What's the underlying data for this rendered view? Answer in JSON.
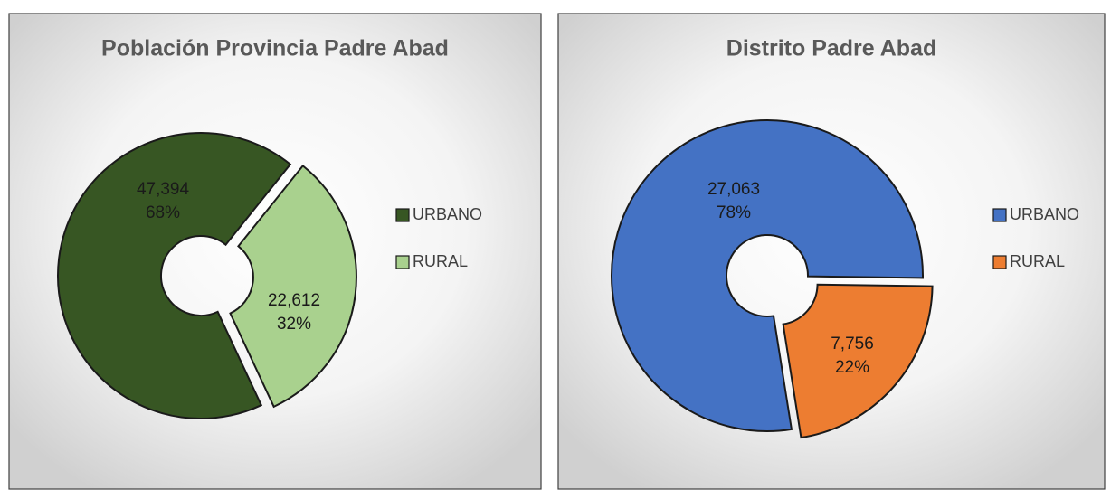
{
  "chart_data": [
    {
      "type": "doughnut",
      "title": "Población Provincia  Padre Abad",
      "categories": [
        "URBANO",
        "RURAL"
      ],
      "values": [
        47394,
        22612
      ],
      "value_labels": [
        "47,394",
        "22,612"
      ],
      "percent_labels": [
        "68%",
        "32%"
      ],
      "colors": [
        "#375623",
        "#a9d18e"
      ],
      "legend": "right"
    },
    {
      "type": "doughnut",
      "title": "Distrito Padre Abad",
      "categories": [
        "URBANO",
        "RURAL"
      ],
      "values": [
        27063,
        7756
      ],
      "value_labels": [
        "27,063",
        "7,756"
      ],
      "percent_labels": [
        "78%",
        "22%"
      ],
      "colors": [
        "#4472c4",
        "#ed7d31"
      ],
      "legend": "right"
    }
  ]
}
